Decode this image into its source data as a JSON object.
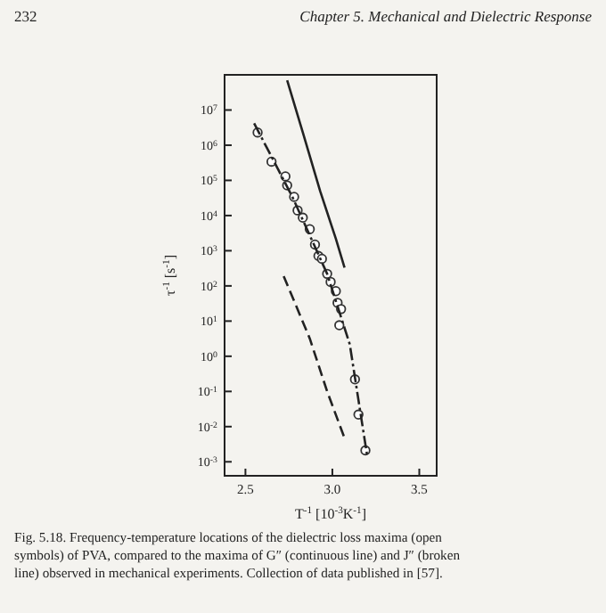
{
  "chart_data": {
    "type": "line",
    "log": "y",
    "xlabel": "T$^{-1}$ [10$^{-3}$K$^{-1}$]",
    "ylabel": "τ$^{-1}$ [s$^{-1}$]",
    "xlim": [
      2.38,
      3.6
    ],
    "xticks": [
      2.5,
      {
        "value": 3,
        "label": "3.0"
      },
      3.5
    ],
    "ylim": [
      0.0004,
      100000000.0
    ],
    "yticks": [
      {
        "value": 0.001,
        "label": "10$^{-3}$"
      },
      {
        "value": 0.01,
        "label": "10$^{-2}$"
      },
      {
        "value": 0.1,
        "label": "10$^{-1}$"
      },
      {
        "value": 1,
        "label": "10$^{0}$"
      },
      {
        "value": 10,
        "label": "10$^{1}$"
      },
      {
        "value": 100,
        "label": "10$^{2}$"
      },
      {
        "value": 1000,
        "label": "10$^{3}$"
      },
      {
        "value": 10000,
        "label": "10$^{4}$"
      },
      {
        "value": 100000,
        "label": "10$^{5}$"
      },
      {
        "value": 1000000,
        "label": "10$^{6}$"
      },
      {
        "value": 10000000,
        "label": "10$^{7}$"
      }
    ],
    "series": [
      {
        "type": "scatter",
        "marker": "circle",
        "color": "#333333",
        "x": [
          2.57,
          2.65,
          2.73,
          2.74,
          2.78,
          2.8,
          2.83,
          2.87,
          2.9,
          2.92,
          2.94,
          2.97,
          2.99,
          3.02,
          3.03,
          3.05,
          3.04,
          3.13,
          3.15,
          3.19
        ],
        "values": [
          2300000,
          340000,
          130000,
          72000,
          34000,
          14000,
          8700,
          4100,
          1500,
          710,
          590,
          220,
          130,
          71,
          33,
          22,
          7.6,
          0.22,
          0.022,
          0.0021
        ]
      },
      {
        "line_style": "dashdot",
        "color": "#222222",
        "x": [
          2.55,
          2.77,
          2.97,
          3.1,
          3.2
        ],
        "values": [
          4200000,
          34000,
          220,
          2.2,
          0.0015
        ]
      },
      {
        "line_style": "solid",
        "color": "#222222",
        "x": [
          2.74,
          2.83,
          2.93,
          3.02,
          3.07
        ],
        "values": [
          70000000,
          2300000,
          49000,
          2200,
          330
        ]
      },
      {
        "line_style": "dashed",
        "color": "#222222",
        "x": [
          2.72,
          2.87,
          2.97,
          3.07
        ],
        "values": [
          190,
          3.2,
          0.1,
          0.0047
        ]
      }
    ],
    "annotations": [
      "232",
      "Chapter 5. Mechanical and Dielectric Response",
      "Fig. 5.18. Frequency-temperature locations of the dielectric loss maxima (open symbols) of PVA, compared to the maxima of G″ (continuous line) and J″ (broken line) observed in mechanical experiments. Collection of data published in [57]."
    ]
  }
}
